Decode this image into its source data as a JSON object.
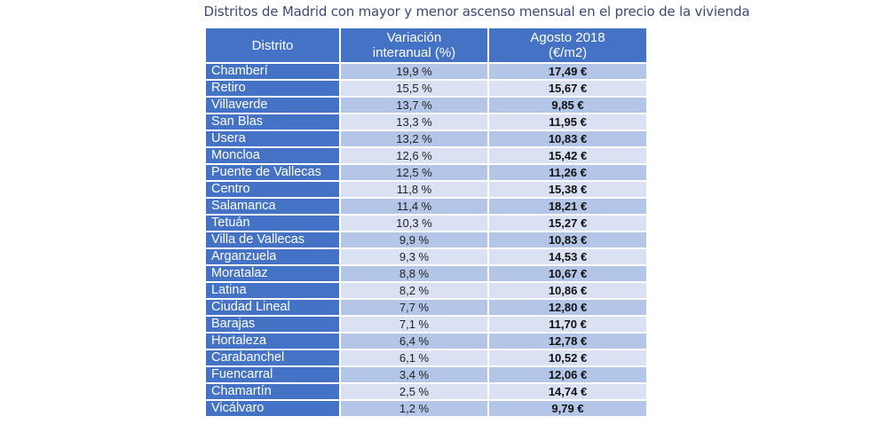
{
  "title": "Distritos de Madrid con mayor y menor ascenso mensual en el precio de la vivienda",
  "colors": {
    "header": "#4472c4",
    "row_dark": "#b4c6e7",
    "row_light": "#d9e1f2"
  },
  "headers": [
    "Distrito",
    "Variación interanual (%)",
    "Agosto 2018 (€/m2)"
  ],
  "rows": [
    [
      "Chamberí",
      "19,9 %",
      "17,49 €"
    ],
    [
      "Retiro",
      "15,5 %",
      "15,67 €"
    ],
    [
      "Villaverde",
      "13,7 %",
      "9,85 €"
    ],
    [
      "San Blas",
      "13,3 %",
      "11,95 €"
    ],
    [
      "Usera",
      "13,2 %",
      "10,83 €"
    ],
    [
      "Moncloa",
      "12,6 %",
      "15,42 €"
    ],
    [
      "Puente de Vallecas",
      "12,5 %",
      "11,26 €"
    ],
    [
      "Centro",
      "11,8 %",
      "15,38 €"
    ],
    [
      "Salamanca",
      "11,4 %",
      "18,21 €"
    ],
    [
      "Tetuán",
      "10,3 %",
      "15,27 €"
    ],
    [
      "Villa de Vallecas",
      "9,9 %",
      "10,83 €"
    ],
    [
      "Arganzuela",
      "9,3 %",
      "14,53 €"
    ],
    [
      "Moratalaz",
      "8,8 %",
      "10,67 €"
    ],
    [
      "Latina",
      "8,2 %",
      "10,86 €"
    ],
    [
      "Ciudad Lineal",
      "7,7 %",
      "12,80 €"
    ],
    [
      "Barajas",
      "7,1 %",
      "11,70 €"
    ],
    [
      "Hortaleza",
      "6,4 %",
      "12,78 €"
    ],
    [
      "Carabanchel",
      "6,1 %",
      "10,52 €"
    ],
    [
      "Fuencarral",
      "3,4 %",
      "12,06 €"
    ],
    [
      "Chamartín",
      "2,5 %",
      "14,74 €"
    ],
    [
      "Vicálvaro",
      "1,2 %",
      "9,79 €"
    ]
  ]
}
